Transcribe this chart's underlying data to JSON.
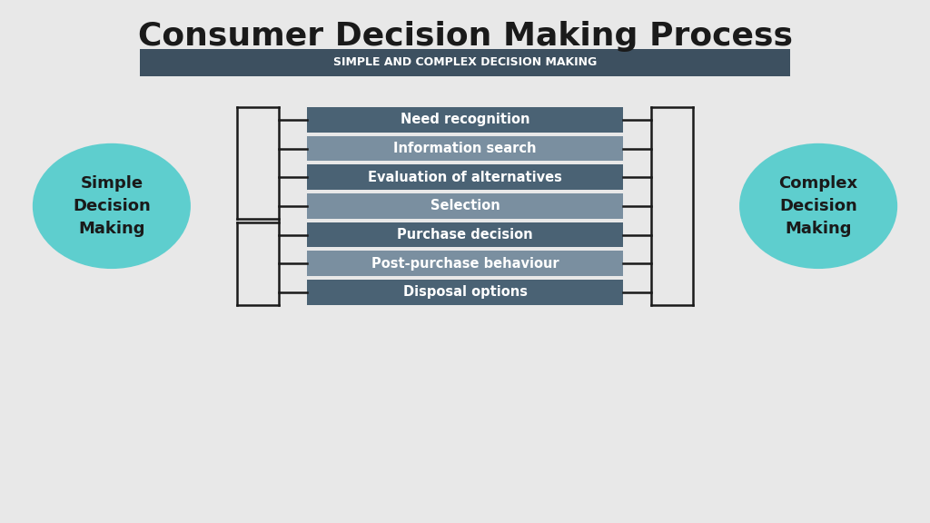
{
  "title": "Consumer Decision Making Process",
  "subtitle": "SIMPLE AND COMPLEX DECISION MAKING",
  "background_color": "#e8e8e8",
  "title_color": "#1a1a1a",
  "subtitle_bg": "#3d5060",
  "subtitle_text_color": "#ffffff",
  "steps": [
    {
      "label": "Need recognition",
      "color": "#4a6274"
    },
    {
      "label": "Information search",
      "color": "#7a8fa0"
    },
    {
      "label": "Evaluation of alternatives",
      "color": "#4a6274"
    },
    {
      "label": "Selection",
      "color": "#7a8fa0"
    },
    {
      "label": "Purchase decision",
      "color": "#4a6274"
    },
    {
      "label": "Post-purchase behaviour",
      "color": "#7a8fa0"
    },
    {
      "label": "Disposal options",
      "color": "#4a6274"
    }
  ],
  "left_circle": {
    "text": "Simple\nDecision\nMaking",
    "color": "#5ecece",
    "text_color": "#1a1a1a"
  },
  "right_circle": {
    "text": "Complex\nDecision\nMaking",
    "color": "#5ecece",
    "text_color": "#1a1a1a"
  },
  "bracket_color": "#1a1a1a",
  "step_text_color": "#ffffff"
}
